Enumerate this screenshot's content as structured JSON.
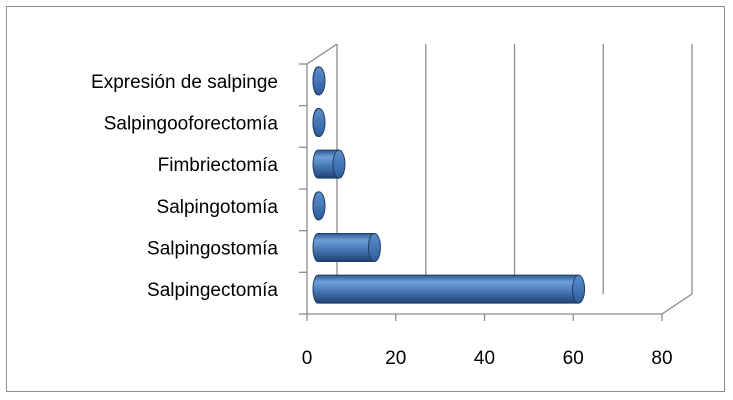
{
  "chart_data": {
    "type": "bar",
    "orientation": "horizontal",
    "style": "3d-cylinder",
    "categories": [
      "Salpingectomía",
      "Salpingostomía",
      "Salpingotomía",
      "Fimbriectomía",
      "Salpingooforectomía",
      "Expresión de salpinge"
    ],
    "values": [
      63,
      17,
      4,
      9,
      4,
      3
    ],
    "xlim": [
      0,
      80
    ],
    "xticks": [
      "0",
      "20",
      "40",
      "60",
      "80"
    ],
    "title": "",
    "xlabel": "",
    "ylabel": "",
    "grid": "vertical",
    "legend": "none",
    "bar_color": "#4f81bd"
  }
}
